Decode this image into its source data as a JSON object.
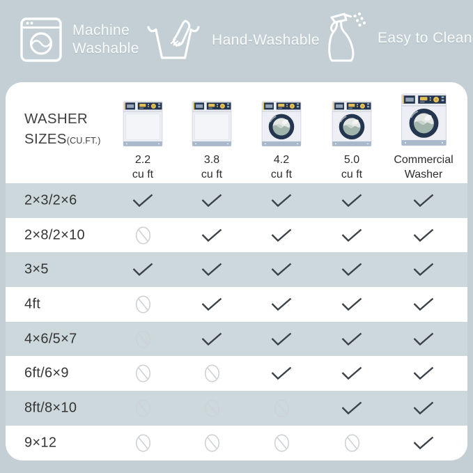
{
  "colors": {
    "background": "#c3cfd4",
    "card": "#ffffff",
    "row_shaded": "#ccd8dc",
    "check": "#3b4247",
    "not_allowed": "#ced2d5",
    "badge_text": "#f9fbfb",
    "table_text": "#353535",
    "washer_navy": "#22344f",
    "washer_yellow": "#e6c157",
    "washer_base": "#a9b9cb"
  },
  "header": {
    "badges": [
      {
        "icon": "washing-machine-icon",
        "label": "Machine Washable",
        "lines": [
          "Machine",
          "Washable"
        ]
      },
      {
        "icon": "hand-wash-icon",
        "label": "Hand-Washable",
        "lines": [
          "Hand-Washable"
        ]
      },
      {
        "icon": "spray-bottle-icon",
        "label": "Easy to Clean",
        "lines": [
          "Easy to Clean"
        ]
      }
    ]
  },
  "table": {
    "corner_title_line1": "WASHER",
    "corner_title_line2": "SIZES",
    "corner_title_suffix": "(CU.FT.)",
    "columns": [
      {
        "name": "2.2 cu ft",
        "lines": [
          "2.2",
          "cu ft"
        ],
        "washer": "top-load",
        "size": "standard"
      },
      {
        "name": "3.8 cu ft",
        "lines": [
          "3.8",
          "cu ft"
        ],
        "washer": "top-load",
        "size": "standard"
      },
      {
        "name": "4.2 cu ft",
        "lines": [
          "4.2",
          "cu ft"
        ],
        "washer": "front-load",
        "size": "standard"
      },
      {
        "name": "5.0 cu ft",
        "lines": [
          "5.0",
          "cu ft"
        ],
        "washer": "front-load",
        "size": "standard"
      },
      {
        "name": "Commercial Washer",
        "lines": [
          "Commercial",
          "Washer"
        ],
        "washer": "front-load",
        "size": "large"
      }
    ],
    "rows": [
      {
        "label": "2×3/2×6",
        "cells": [
          "yes",
          "yes",
          "yes",
          "yes",
          "yes"
        ]
      },
      {
        "label": "2×8/2×10",
        "cells": [
          "no",
          "yes",
          "yes",
          "yes",
          "yes"
        ]
      },
      {
        "label": "3×5",
        "cells": [
          "yes",
          "yes",
          "yes",
          "yes",
          "yes"
        ]
      },
      {
        "label": "4ft",
        "cells": [
          "no",
          "yes",
          "yes",
          "yes",
          "yes"
        ]
      },
      {
        "label": "4×6/5×7",
        "cells": [
          "no",
          "yes",
          "yes",
          "yes",
          "yes"
        ]
      },
      {
        "label": "6ft/6×9",
        "cells": [
          "no",
          "no",
          "yes",
          "yes",
          "yes"
        ]
      },
      {
        "label": "8ft/8×10",
        "cells": [
          "no",
          "no",
          "no",
          "yes",
          "yes"
        ]
      },
      {
        "label": "9×12",
        "cells": [
          "no",
          "no",
          "no",
          "no",
          "yes"
        ]
      }
    ]
  }
}
